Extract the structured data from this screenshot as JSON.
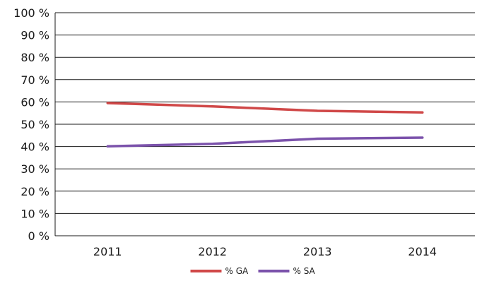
{
  "chart_data": {
    "type": "line",
    "categories": [
      "2011",
      "2012",
      "2013",
      "2014"
    ],
    "series": [
      {
        "name": "% GA",
        "values": [
          59.5,
          58,
          56,
          55.3
        ],
        "color": "#d04848"
      },
      {
        "name": "% SA",
        "values": [
          40.1,
          41.2,
          43.5,
          44
        ],
        "color": "#7b52ab"
      }
    ],
    "ylim": [
      0,
      100
    ],
    "y_ticks": [
      0,
      10,
      20,
      30,
      40,
      50,
      60,
      70,
      80,
      90,
      100
    ],
    "y_tick_labels": [
      "0 %",
      "10 %",
      "20 %",
      "30 %",
      "40 %",
      "50 %",
      "60 %",
      "70 %",
      "80 %",
      "90 %",
      "100 %"
    ],
    "grid": true,
    "legend": "bottom",
    "axis_color": "#1a1a1a"
  }
}
